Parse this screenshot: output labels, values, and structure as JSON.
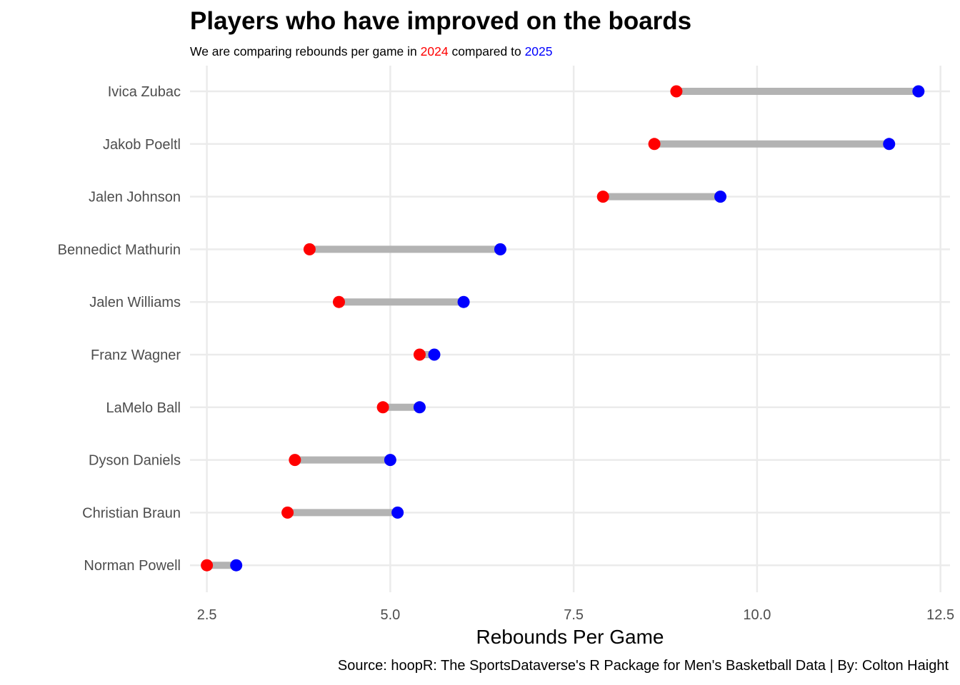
{
  "chart_data": {
    "type": "dumbbell",
    "title": "Players who have improved on the boards",
    "subtitle": {
      "parts": [
        {
          "text": "We are comparing rebounds per game in ",
          "color": "#000000"
        },
        {
          "text": "2024",
          "color": "#ff0000"
        },
        {
          "text": " compared to ",
          "color": "#000000"
        },
        {
          "text": "2025",
          "color": "#0000ff"
        }
      ]
    },
    "xlabel": "Rebounds Per Game",
    "ylabel": "",
    "caption": "Source: hoopR: The SportsDataverse's R Package for Men's Basketball Data | By: Colton Haight",
    "xlim": [
      2.27,
      12.63
    ],
    "xticks": [
      2.5,
      5.0,
      7.5,
      10.0,
      12.5
    ],
    "xtick_labels": [
      "2.5",
      "5.0",
      "7.5",
      "10.0",
      "12.5"
    ],
    "grid": true,
    "legend": "none",
    "colors": {
      "start": "#ff0000",
      "end": "#0000ff",
      "segment": "#b3b3b3",
      "grid": "#ebebeb"
    },
    "series": [
      {
        "name": "2024",
        "color": "#ff0000"
      },
      {
        "name": "2025",
        "color": "#0000ff"
      }
    ],
    "players": [
      {
        "name": "Ivica Zubac",
        "y2024": 8.9,
        "y2025": 12.2
      },
      {
        "name": "Jakob Poeltl",
        "y2024": 8.6,
        "y2025": 11.8
      },
      {
        "name": "Jalen Johnson",
        "y2024": 7.9,
        "y2025": 9.5
      },
      {
        "name": "Bennedict Mathurin",
        "y2024": 3.9,
        "y2025": 6.5
      },
      {
        "name": "Jalen Williams",
        "y2024": 4.3,
        "y2025": 6.0
      },
      {
        "name": "Franz Wagner",
        "y2024": 5.4,
        "y2025": 5.6
      },
      {
        "name": "LaMelo Ball",
        "y2024": 4.9,
        "y2025": 5.4
      },
      {
        "name": "Dyson Daniels",
        "y2024": 3.7,
        "y2025": 5.0
      },
      {
        "name": "Christian Braun",
        "y2024": 3.6,
        "y2025": 5.1
      },
      {
        "name": "Norman Powell",
        "y2024": 2.5,
        "y2025": 2.9
      }
    ]
  }
}
